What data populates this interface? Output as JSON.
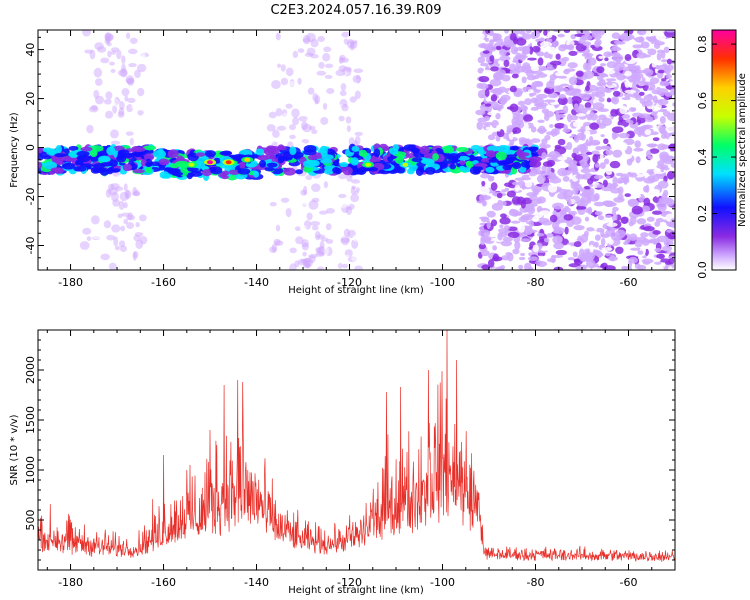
{
  "title": "C2E3.2024.057.16.39.R09",
  "colors": {
    "snr_line": "#e8302a",
    "axes": "#000000"
  },
  "chart_data": [
    {
      "type": "heatmap",
      "name": "spectrogram",
      "xlabel": "Height of straight line (km)",
      "ylabel": "Frequency (Hz)",
      "xlim": [
        -187,
        -50
      ],
      "ylim": [
        -50,
        48
      ],
      "xticks": [
        -180,
        -160,
        -140,
        -120,
        -100,
        -80,
        -60
      ],
      "yticks": [
        -40,
        -20,
        0,
        20,
        40
      ],
      "colorbar": {
        "label": "Normalized spectral amplitude",
        "range": [
          0.0,
          0.85
        ],
        "ticks": [
          0.0,
          0.2,
          0.4,
          0.6,
          0.8
        ],
        "colormap": "rainbow"
      },
      "band": {
        "center_hz": -5,
        "halfwidth_hz": 5,
        "x_start": -187,
        "x_end": -80
      },
      "noise_region_x_start": -92,
      "peaks": [
        {
          "x": -150,
          "y": -6,
          "amp": 0.85
        },
        {
          "x": -146,
          "y": -6,
          "amp": 0.82
        },
        {
          "x": -142,
          "y": -5,
          "amp": 0.72
        },
        {
          "x": -154,
          "y": -7,
          "amp": 0.6
        },
        {
          "x": -116,
          "y": -7,
          "amp": 0.6
        },
        {
          "x": -108,
          "y": -7,
          "amp": 0.55
        }
      ]
    },
    {
      "type": "line",
      "name": "snr",
      "xlabel": "Height of straight line (km)",
      "ylabel": "SNR (10 * v/v)",
      "xlim": [
        -187,
        -50
      ],
      "ylim": [
        0,
        2400
      ],
      "xticks": [
        -180,
        -160,
        -140,
        -120,
        -100,
        -80,
        -60
      ],
      "yticks": [
        500,
        1000,
        1500,
        2000
      ],
      "envelope": [
        {
          "x": -187,
          "base": 250,
          "amp": 450
        },
        {
          "x": -180,
          "base": 200,
          "amp": 400
        },
        {
          "x": -172,
          "base": 170,
          "amp": 250
        },
        {
          "x": -166,
          "base": 160,
          "amp": 180
        },
        {
          "x": -162,
          "base": 230,
          "amp": 500
        },
        {
          "x": -156,
          "base": 330,
          "amp": 700
        },
        {
          "x": -150,
          "base": 420,
          "amp": 900
        },
        {
          "x": -145,
          "base": 520,
          "amp": 1250
        },
        {
          "x": -141,
          "base": 480,
          "amp": 1150
        },
        {
          "x": -136,
          "base": 330,
          "amp": 500
        },
        {
          "x": -130,
          "base": 230,
          "amp": 300
        },
        {
          "x": -124,
          "base": 210,
          "amp": 220
        },
        {
          "x": -118,
          "base": 250,
          "amp": 420
        },
        {
          "x": -112,
          "base": 420,
          "amp": 950
        },
        {
          "x": -106,
          "base": 500,
          "amp": 1050
        },
        {
          "x": -100,
          "base": 650,
          "amp": 1500
        },
        {
          "x": -96,
          "base": 580,
          "amp": 1250
        },
        {
          "x": -92,
          "base": 450,
          "amp": 750
        },
        {
          "x": -91,
          "base": 130,
          "amp": 120
        },
        {
          "x": -70,
          "base": 120,
          "amp": 110
        },
        {
          "x": -50,
          "base": 110,
          "amp": 110
        }
      ],
      "peaks": [
        {
          "x": -99,
          "y": 2400
        },
        {
          "x": -97,
          "y": 2100
        },
        {
          "x": -103,
          "y": 2000
        },
        {
          "x": -144,
          "y": 1900
        },
        {
          "x": -143,
          "y": 1880
        },
        {
          "x": -147,
          "y": 1850
        },
        {
          "x": -109,
          "y": 1830
        },
        {
          "x": -112,
          "y": 1780
        },
        {
          "x": -150,
          "y": 1400
        },
        {
          "x": -160,
          "y": 1150
        },
        {
          "x": -155,
          "y": 1000
        }
      ]
    }
  ]
}
